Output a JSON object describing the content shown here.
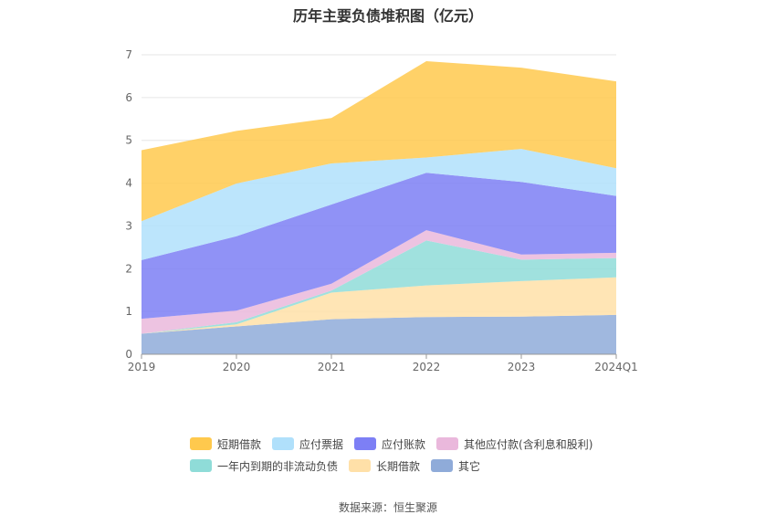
{
  "chart_data": {
    "type": "area",
    "title": "历年主要负债堆积图（亿元）",
    "categories": [
      "2019",
      "2020",
      "2021",
      "2022",
      "2023",
      "2024Q1"
    ],
    "ylim": [
      0,
      7
    ],
    "yticks": [
      "0",
      "1",
      "2",
      "3",
      "4",
      "5",
      "6",
      "7"
    ],
    "stacked": true,
    "grid": true,
    "legend_position": "bottom",
    "series": [
      {
        "name": "其它",
        "color": "#8fabd9",
        "values": [
          0.48,
          0.65,
          0.82,
          0.87,
          0.88,
          0.92
        ]
      },
      {
        "name": "长期借款",
        "color": "#ffe0a8",
        "values": [
          0.0,
          0.05,
          0.62,
          0.74,
          0.83,
          0.88
        ]
      },
      {
        "name": "一年内到期的非流动负债",
        "color": "#8fdcd8",
        "values": [
          0.0,
          0.05,
          0.05,
          1.05,
          0.5,
          0.45
        ]
      },
      {
        "name": "其他应付款(含利息和股利)",
        "color": "#eab8dc",
        "values": [
          0.35,
          0.27,
          0.16,
          0.24,
          0.12,
          0.12
        ]
      },
      {
        "name": "应付账款",
        "color": "#7d7ff5",
        "values": [
          1.37,
          1.74,
          1.85,
          1.34,
          1.7,
          1.33
        ]
      },
      {
        "name": "应付票据",
        "color": "#b0e0fb",
        "values": [
          0.91,
          1.23,
          0.96,
          0.36,
          0.77,
          0.65
        ]
      },
      {
        "name": "短期借款",
        "color": "#ffc94d",
        "values": [
          1.66,
          1.23,
          1.06,
          2.25,
          1.9,
          2.03
        ]
      }
    ],
    "legend_order": [
      "短期借款",
      "应付票据",
      "应付账款",
      "其他应付款(含利息和股利)",
      "一年内到期的非流动负债",
      "长期借款",
      "其它"
    ]
  },
  "legend_rows": [
    [
      {
        "label": "短期借款",
        "color": "#ffc94d"
      },
      {
        "label": "应付票据",
        "color": "#b0e0fb"
      },
      {
        "label": "应付账款",
        "color": "#7d7ff5"
      },
      {
        "label": "其他应付款(含利息和股利)",
        "color": "#eab8dc"
      }
    ],
    [
      {
        "label": "一年内到期的非流动负债",
        "color": "#8fdcd8"
      },
      {
        "label": "长期借款",
        "color": "#ffe0a8"
      },
      {
        "label": "其它",
        "color": "#8fabd9"
      }
    ]
  ],
  "source": "数据来源：恒生聚源"
}
